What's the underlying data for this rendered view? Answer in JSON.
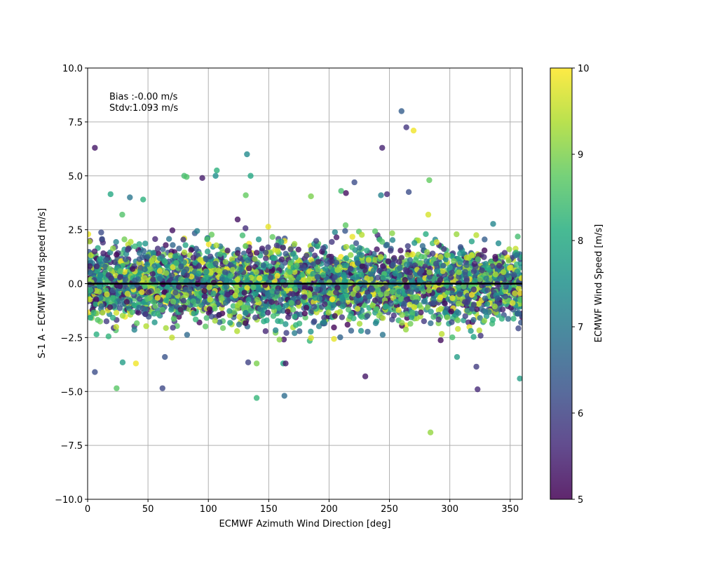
{
  "chart_data": {
    "type": "scatter",
    "title": "",
    "xlabel": "ECMWF Azimuth Wind Direction [deg]",
    "ylabel": "S-1 A - ECMWF Wind speed [m/s]",
    "xlim": [
      0,
      360
    ],
    "ylim": [
      -10,
      10
    ],
    "xticks": [
      "0",
      "50",
      "100",
      "150",
      "200",
      "250",
      "300",
      "350"
    ],
    "yticks": [
      "−10.0",
      "−7.5",
      "−5.0",
      "−2.5",
      "0.0",
      "2.5",
      "5.0",
      "7.5",
      "10.0"
    ],
    "grid": true,
    "zero_line": 0,
    "annotation": {
      "bias": "Bias :-0.00 m/s",
      "stdv": "Stdv:1.093 m/s"
    },
    "colorbar": {
      "label": "ECMWF Wind Speed [m/s]",
      "min": 5,
      "max": 10,
      "ticks": [
        "5",
        "6",
        "7",
        "8",
        "9",
        "10"
      ],
      "colormap": "viridis"
    },
    "marker_alpha": 0.8,
    "colors": {
      "zero_line": "#000000",
      "grid": "#b0b0b0"
    },
    "bulk_distribution": {
      "n_points": 4000,
      "mean": 0.0,
      "std": 1.093,
      "x_range": [
        0,
        360
      ],
      "speed_range": [
        5,
        10
      ]
    },
    "outliers": [
      {
        "x": 6,
        "y": 6.3,
        "speed": 5.3
      },
      {
        "x": 260,
        "y": 8.0,
        "speed": 6.5
      },
      {
        "x": 264,
        "y": 7.25,
        "speed": 5.8
      },
      {
        "x": 270,
        "y": 7.1,
        "speed": 9.9
      },
      {
        "x": 244,
        "y": 6.3,
        "speed": 5.5
      },
      {
        "x": 132,
        "y": 6.0,
        "speed": 7.4
      },
      {
        "x": 107,
        "y": 5.25,
        "speed": 8.2
      },
      {
        "x": 106,
        "y": 5.0,
        "speed": 7.5
      },
      {
        "x": 80,
        "y": 5.0,
        "speed": 8.5
      },
      {
        "x": 82,
        "y": 4.95,
        "speed": 8.6
      },
      {
        "x": 95,
        "y": 4.9,
        "speed": 5.4
      },
      {
        "x": 135,
        "y": 5.0,
        "speed": 8.0
      },
      {
        "x": 221,
        "y": 4.7,
        "speed": 6.2
      },
      {
        "x": 283,
        "y": 4.8,
        "speed": 8.8
      },
      {
        "x": 266,
        "y": 4.25,
        "speed": 6.2
      },
      {
        "x": 243,
        "y": 4.1,
        "speed": 7.2
      },
      {
        "x": 248,
        "y": 4.15,
        "speed": 5.6
      },
      {
        "x": 210,
        "y": 4.3,
        "speed": 8.5
      },
      {
        "x": 214,
        "y": 4.2,
        "speed": 5.2
      },
      {
        "x": 19,
        "y": 4.15,
        "speed": 8.0
      },
      {
        "x": 35,
        "y": 4.0,
        "speed": 7.0
      },
      {
        "x": 46,
        "y": 3.9,
        "speed": 8.2
      },
      {
        "x": 131,
        "y": 4.1,
        "speed": 8.8
      },
      {
        "x": 185,
        "y": 4.05,
        "speed": 9.0
      },
      {
        "x": 6,
        "y": -4.1,
        "speed": 6.2
      },
      {
        "x": 24,
        "y": -4.85,
        "speed": 8.7
      },
      {
        "x": 62,
        "y": -4.85,
        "speed": 6.1
      },
      {
        "x": 140,
        "y": -5.3,
        "speed": 8.3
      },
      {
        "x": 163,
        "y": -5.2,
        "speed": 6.8
      },
      {
        "x": 230,
        "y": -4.3,
        "speed": 5.3
      },
      {
        "x": 323,
        "y": -4.9,
        "speed": 5.6
      },
      {
        "x": 322,
        "y": -3.85,
        "speed": 5.9
      },
      {
        "x": 284,
        "y": -6.9,
        "speed": 9.2
      },
      {
        "x": 358,
        "y": -4.4,
        "speed": 7.8
      },
      {
        "x": 133,
        "y": -3.65,
        "speed": 6.0
      },
      {
        "x": 140,
        "y": -3.7,
        "speed": 9.0
      },
      {
        "x": 162,
        "y": -3.7,
        "speed": 8.0
      },
      {
        "x": 164,
        "y": -3.7,
        "speed": 5.4
      },
      {
        "x": 64,
        "y": -3.4,
        "speed": 6.3
      },
      {
        "x": 29,
        "y": -3.65,
        "speed": 7.8
      },
      {
        "x": 40,
        "y": -3.7,
        "speed": 9.9
      },
      {
        "x": 306,
        "y": -3.4,
        "speed": 7.8
      }
    ]
  }
}
